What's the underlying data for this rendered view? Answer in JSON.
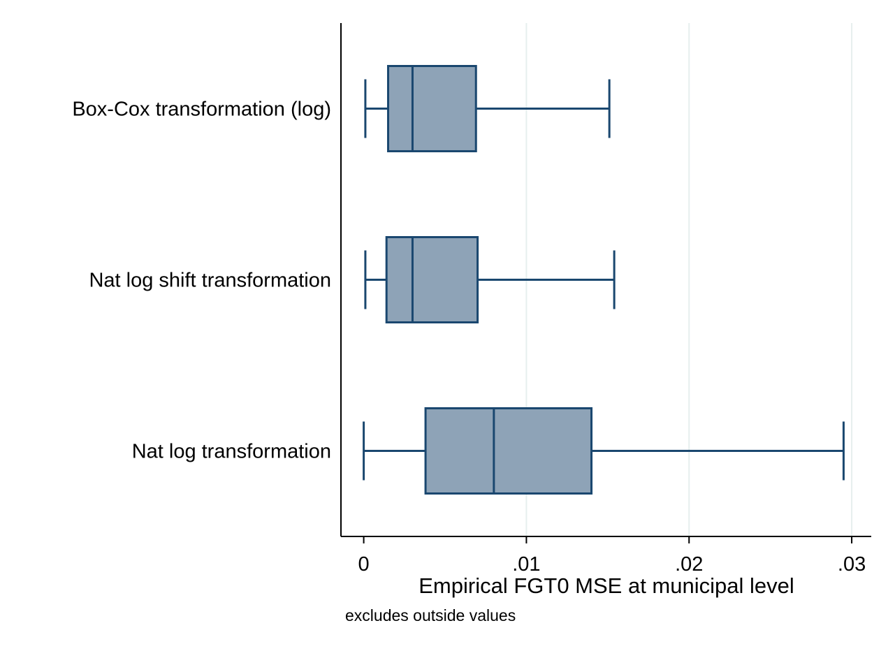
{
  "chart_data": {
    "type": "box",
    "orientation": "horizontal",
    "categories": [
      "Box-Cox transformation (log)",
      "Nat log shift transformation",
      "Nat log transformation"
    ],
    "boxes": [
      {
        "label": "Box-Cox transformation (log)",
        "whisker_low": 0.0001,
        "q1": 0.0015,
        "median": 0.003,
        "q3": 0.0069,
        "whisker_high": 0.0151
      },
      {
        "label": "Nat log shift transformation",
        "whisker_low": 0.0001,
        "q1": 0.0014,
        "median": 0.003,
        "q3": 0.007,
        "whisker_high": 0.0154
      },
      {
        "label": "Nat log transformation",
        "whisker_low": 0.0,
        "q1": 0.0038,
        "median": 0.008,
        "q3": 0.014,
        "whisker_high": 0.0295
      }
    ],
    "xlabel": "Empirical FGT0 MSE at municipal level",
    "note": "excludes outside values",
    "xticks": [
      {
        "value": 0,
        "label": "0"
      },
      {
        "value": 0.01,
        "label": ".01"
      },
      {
        "value": 0.02,
        "label": ".02"
      },
      {
        "value": 0.03,
        "label": ".03"
      }
    ],
    "xlim": [
      -0.0014,
      0.0312
    ],
    "grid": true,
    "colors": {
      "box_fill": "#8ea3b7",
      "box_stroke": "#1a476f",
      "grid": "#e6efee",
      "axis": "#000000"
    }
  }
}
